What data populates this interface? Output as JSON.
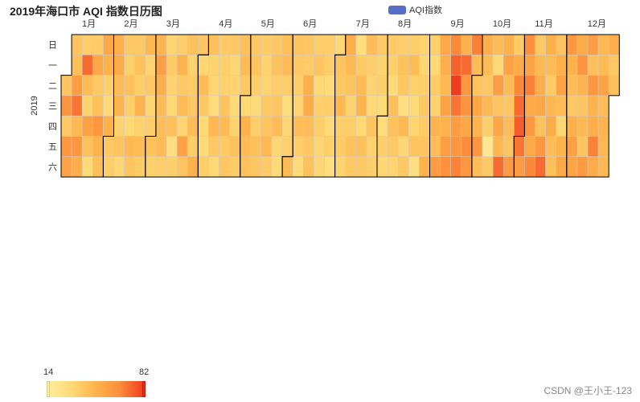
{
  "title": "2019年海口市 AQI 指数日历图",
  "legend": {
    "label": "AQI指数",
    "color": "#5470c6"
  },
  "watermark": "CSDN @王小王-123",
  "chart_data": {
    "type": "heatmap",
    "year": 2019,
    "visual_map": {
      "min": 14,
      "max": 82,
      "min_label": "14",
      "max_label": "82",
      "colors": [
        "#ffeda0",
        "#fed976",
        "#feb24c",
        "#fd8d3c",
        "#f03b20"
      ]
    },
    "month_labels": [
      "1月",
      "2月",
      "3月",
      "4月",
      "5月",
      "6月",
      "7月",
      "8月",
      "9月",
      "10月",
      "11月",
      "12月"
    ],
    "day_labels": [
      "日",
      "一",
      "二",
      "三",
      "四",
      "五",
      "六"
    ],
    "year_label": "2019",
    "values": [
      40,
      62,
      38,
      60,
      55,
      40,
      42,
      57,
      70,
      45,
      60,
      50,
      36,
      72,
      44,
      33,
      56,
      41,
      30,
      37,
      53,
      38,
      41,
      60,
      47,
      42,
      52,
      48,
      35,
      30,
      48,
      38,
      36,
      49,
      51,
      44,
      47,
      33,
      40,
      32,
      38,
      35,
      42,
      36,
      31,
      45,
      40,
      38,
      41,
      36,
      47,
      34,
      44,
      37,
      46,
      33,
      38,
      32,
      36,
      41,
      35,
      47,
      57,
      50,
      44,
      43,
      44,
      36,
      33,
      37,
      34,
      31,
      42,
      27,
      35,
      36,
      47,
      38,
      44,
      33,
      55,
      40,
      41,
      34,
      37,
      38,
      43,
      36,
      48,
      39,
      32,
      44,
      38,
      31,
      30,
      36,
      42,
      33,
      32,
      29,
      46,
      38,
      31,
      37,
      35,
      34,
      40,
      44,
      37,
      39,
      38,
      32,
      33,
      30,
      34,
      41,
      37,
      42,
      44,
      38,
      31,
      48,
      44,
      41,
      38,
      40,
      35,
      30,
      36,
      42,
      39,
      37,
      34,
      33,
      38,
      40,
      45,
      37,
      38,
      41,
      36,
      39,
      44,
      32,
      30,
      42,
      44,
      36,
      28,
      32,
      35,
      44,
      40,
      38,
      36,
      33,
      43,
      36,
      30,
      39,
      37,
      49,
      51,
      43,
      39,
      41,
      36,
      40,
      31,
      35,
      36,
      32,
      32,
      36,
      36,
      30,
      36,
      30,
      35,
      27,
      31,
      40,
      38,
      45,
      35,
      37,
      33,
      50,
      45,
      40,
      33,
      36,
      41,
      38,
      28,
      37,
      44,
      47,
      31,
      42,
      38,
      44,
      36,
      33,
      31,
      40,
      34,
      36,
      37,
      33,
      35,
      30,
      29,
      36,
      32,
      37,
      35,
      30,
      42,
      41,
      38,
      33,
      36,
      41,
      39,
      27,
      45,
      32,
      38,
      36,
      44,
      35,
      30,
      33,
      40,
      27,
      33,
      32,
      35,
      38,
      37,
      40,
      48,
      35,
      31,
      37,
      34,
      47,
      43,
      58,
      52,
      50,
      45,
      55,
      48,
      57,
      63,
      66,
      74,
      82,
      70,
      58,
      61,
      67,
      48,
      72,
      60,
      62,
      53,
      65,
      60,
      68,
      44,
      40,
      54,
      47,
      61,
      43,
      50,
      44,
      39,
      45,
      35,
      20,
      38,
      44,
      31,
      57,
      40,
      53,
      46,
      72,
      48,
      55,
      44,
      39,
      43,
      40,
      58,
      37,
      51,
      66,
      72,
      75,
      70,
      58,
      64,
      55,
      68,
      52,
      60,
      52,
      66,
      38,
      45,
      50,
      53,
      41,
      60,
      72,
      49,
      44,
      37,
      46,
      51,
      43,
      42,
      40,
      49,
      55,
      44,
      32,
      47,
      52,
      60,
      48,
      43,
      38,
      49,
      56,
      54,
      51,
      62,
      47,
      39,
      45,
      40,
      59,
      57,
      42,
      60,
      47,
      50,
      67,
      51,
      45,
      44,
      55,
      43,
      47,
      46,
      45,
      50,
      38,
      42,
      52,
      41,
      48,
      55
    ]
  }
}
